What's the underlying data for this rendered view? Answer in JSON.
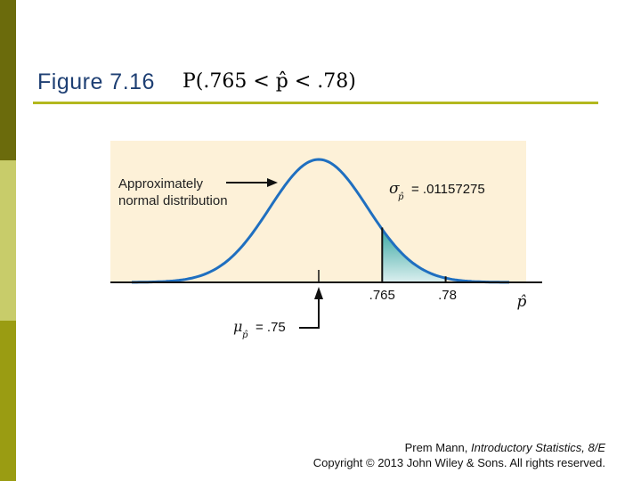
{
  "slide": {
    "figure_label": "Figure 7.16",
    "formula": "P(.765 < p̂ < .78)",
    "caption_author": "Prem Mann, ",
    "caption_book": "Introductory Statistics, 8/E",
    "caption_copyright": "Copyright © 2013 John Wiley & Sons. All rights reserved."
  },
  "diagram": {
    "annotation_line1": "Approximately",
    "annotation_line2": "normal distribution",
    "sigma_symbol": "σ",
    "sigma_sub": "p̂",
    "sigma_value": "= .01157275",
    "mu_symbol": "μ",
    "mu_sub": "p̂",
    "mu_value": "= .75",
    "tick_lower": ".765",
    "tick_upper": ".78",
    "axis_label": "p̂",
    "mean": 0.75,
    "std_error": 0.01157275,
    "shaded_from": 0.765,
    "shaded_to": 0.78
  },
  "colors": {
    "panel": "#fdf1d8",
    "curve": "#1f6fc0",
    "shade_top": "#3aa8a2",
    "shade_bottom": "#d9eeee",
    "title": "#1e3f73",
    "rule": "#b3b81e"
  }
}
